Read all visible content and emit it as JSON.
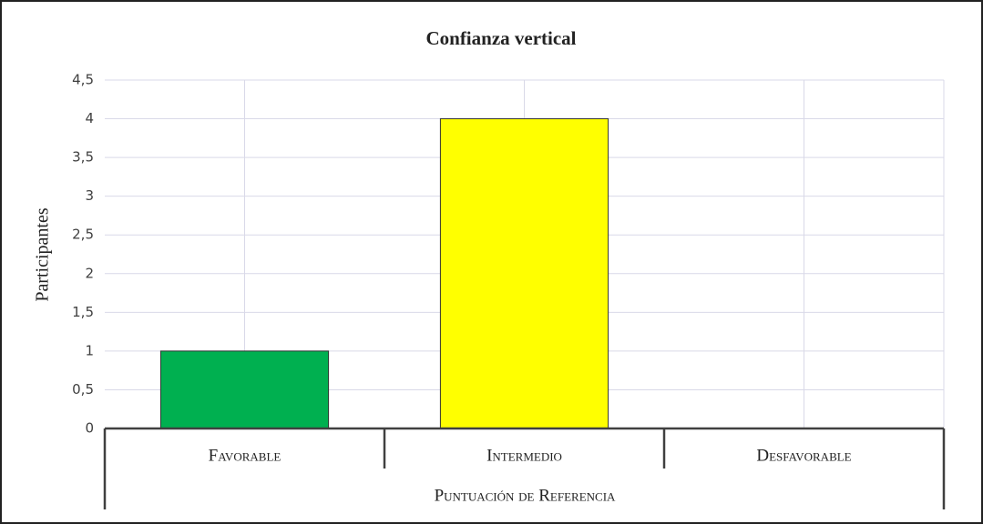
{
  "chart_data": {
    "type": "bar",
    "title": "Confianza vertical",
    "categories": [
      "Favorable",
      "Intermedio",
      "Desfavorable"
    ],
    "values": [
      1,
      4,
      0
    ],
    "colors": [
      "#00b050",
      "#ffff00",
      null
    ],
    "ylabel": "Participantes",
    "xlabel": "Puntuación de Referencia",
    "ylim": [
      0,
      4.5
    ],
    "yticks": [
      0,
      {
        "value": 0.5,
        "label": "0,5"
      },
      1,
      {
        "value": 1.5,
        "label": "1,5"
      },
      2,
      {
        "value": 2.5,
        "label": "2,5"
      },
      3,
      {
        "value": 3.5,
        "label": "3,5"
      },
      4,
      {
        "value": 4.5,
        "label": "4,5"
      }
    ],
    "grid": true
  }
}
